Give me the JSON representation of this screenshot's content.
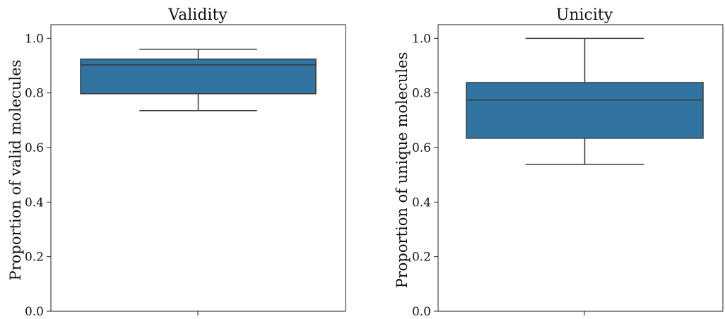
{
  "colors": {
    "box_fill": "#3274a1",
    "line": "#3a3a3a"
  },
  "chart_data": [
    {
      "type": "box",
      "title": "Validity",
      "ylabel": "Proportion of valid molecules",
      "ylim": [
        0.0,
        1.05
      ],
      "yticks": [
        "0.0",
        "0.2",
        "0.4",
        "0.6",
        "0.8",
        "1.0"
      ],
      "grid": false,
      "box": {
        "whisker_low": 0.735,
        "q1": 0.797,
        "median": 0.903,
        "q3": 0.924,
        "whisker_high": 0.96
      }
    },
    {
      "type": "box",
      "title": "Unicity",
      "ylabel": "Proportion of unique molecules",
      "ylim": [
        0.0,
        1.05
      ],
      "yticks": [
        "0.0",
        "0.2",
        "0.4",
        "0.6",
        "0.8",
        "1.0"
      ],
      "grid": false,
      "box": {
        "whisker_low": 0.538,
        "q1": 0.634,
        "median": 0.774,
        "q3": 0.838,
        "whisker_high": 1.0
      }
    }
  ]
}
